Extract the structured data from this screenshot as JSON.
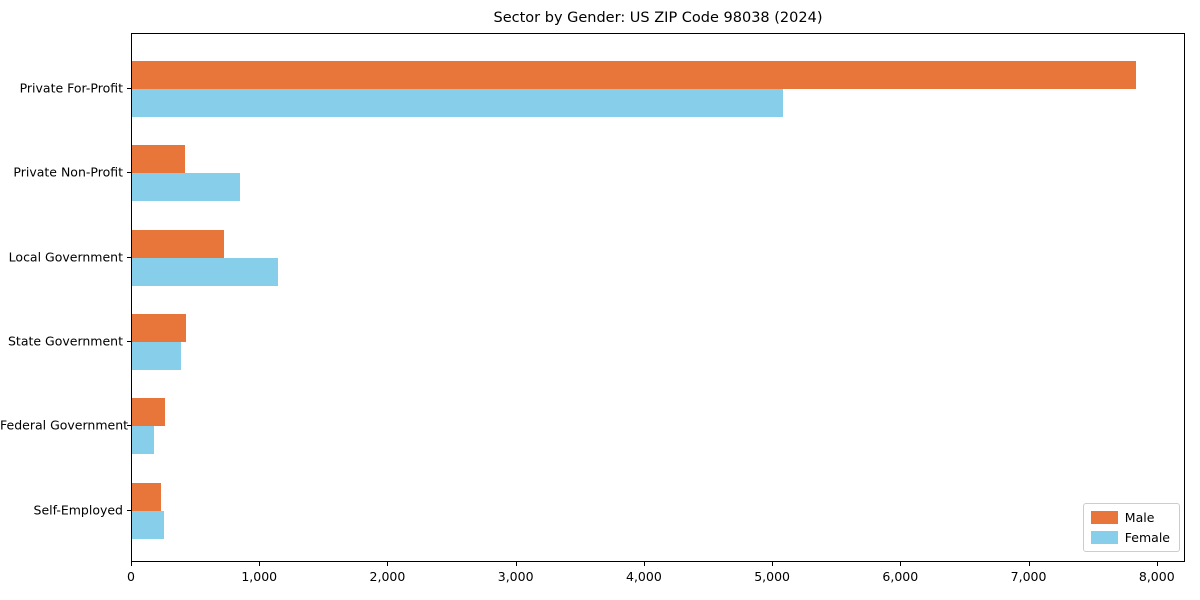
{
  "chart_data": {
    "type": "bar",
    "orientation": "horizontal",
    "title": "Sector by Gender: US ZIP Code 98038 (2024)",
    "categories": [
      "Private For-Profit",
      "Private Non-Profit",
      "Local Government",
      "State Government",
      "Federal Government",
      "Self-Employed"
    ],
    "series": [
      {
        "name": "Male",
        "color": "#E8763B",
        "values": [
          7830,
          410,
          720,
          420,
          255,
          225
        ]
      },
      {
        "name": "Female",
        "color": "#87CEEB",
        "values": [
          5080,
          840,
          1140,
          385,
          170,
          250
        ]
      }
    ],
    "xlabel": "",
    "ylabel": "",
    "xlim": [
      0,
      8220
    ],
    "xticks": [
      0,
      1000,
      2000,
      3000,
      4000,
      5000,
      6000,
      7000,
      8000
    ],
    "xtick_labels": [
      "0",
      "1,000",
      "2,000",
      "3,000",
      "4,000",
      "5,000",
      "6,000",
      "7,000",
      "8,000"
    ],
    "grid": false,
    "legend_position": "lower right"
  }
}
